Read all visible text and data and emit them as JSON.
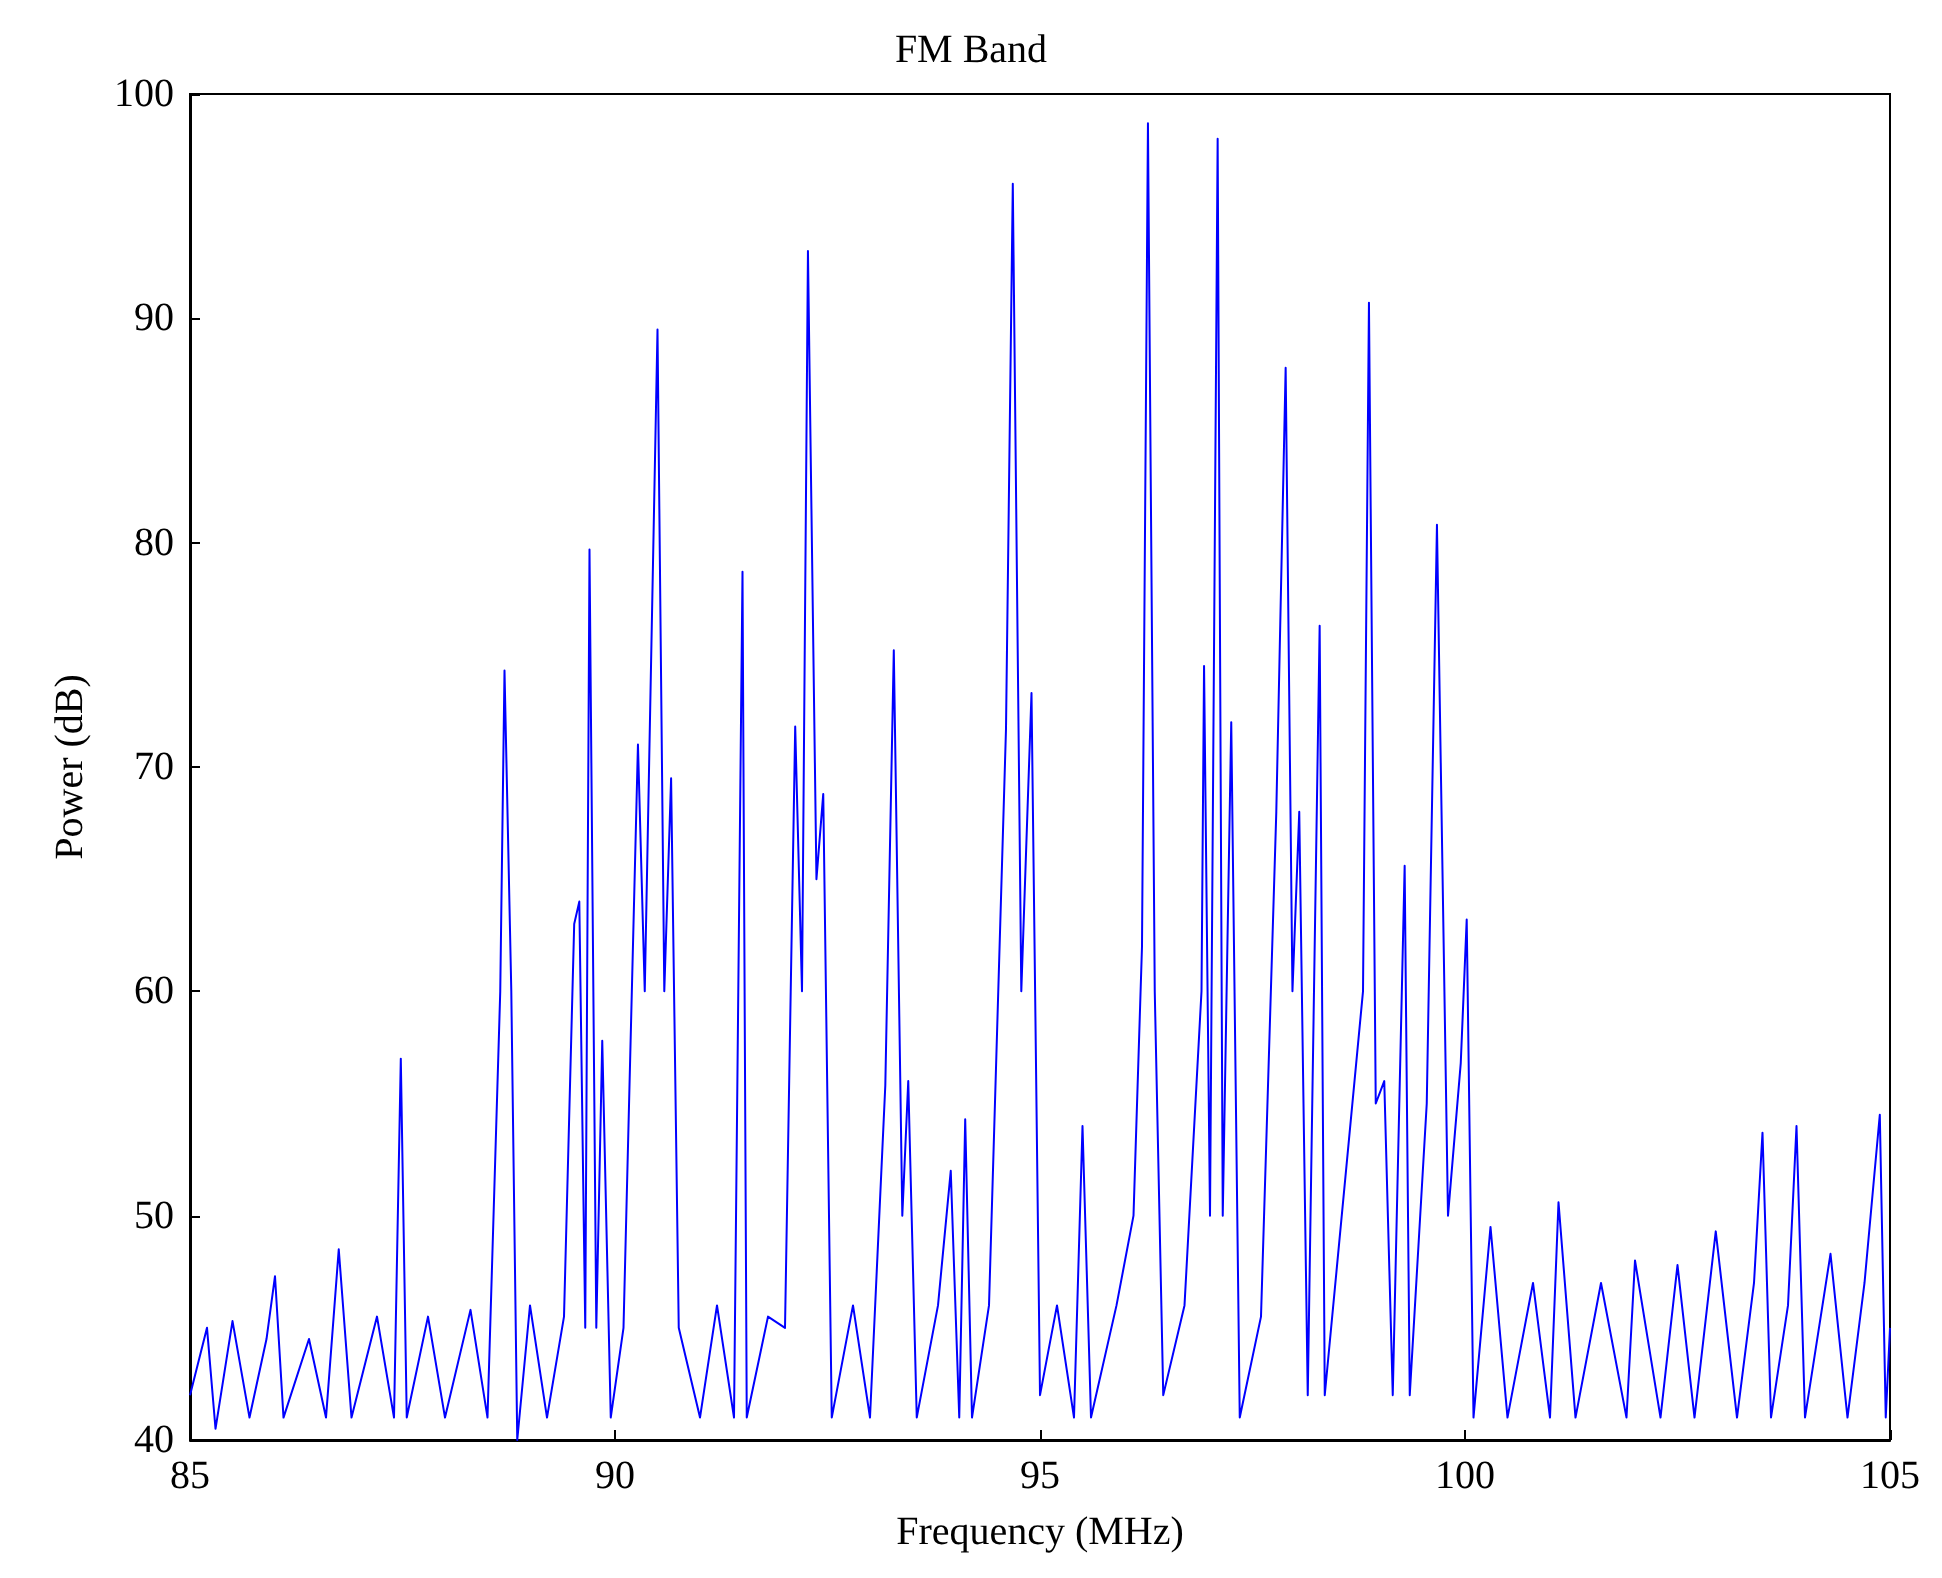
{
  "chart_data": {
    "type": "line",
    "title": "FM Band",
    "xlabel": "Frequency (MHz)",
    "ylabel": "Power (dB)",
    "xlim": [
      85,
      105
    ],
    "xticks": [
      85,
      90,
      95,
      100,
      105
    ],
    "ylim": [
      40,
      100
    ],
    "yticks": [
      40,
      50,
      60,
      70,
      80,
      90,
      100
    ],
    "grid": false,
    "marker": "none",
    "x": [
      85,
      85.2,
      85.3,
      85.5,
      85.7,
      85.9,
      86.0,
      86.1,
      86.4,
      86.6,
      86.75,
      86.9,
      87.2,
      87.4,
      87.48,
      87.55,
      87.8,
      88.0,
      88.3,
      88.5,
      88.65,
      88.7,
      88.78,
      88.85,
      89.0,
      89.2,
      89.4,
      89.52,
      89.58,
      89.65,
      89.7,
      89.78,
      89.85,
      89.95,
      90.1,
      90.27,
      90.35,
      90.5,
      90.58,
      90.66,
      90.75,
      91.0,
      91.2,
      91.4,
      91.5,
      91.55,
      91.8,
      92.0,
      92.12,
      92.2,
      92.27,
      92.37,
      92.45,
      92.55,
      92.8,
      93.0,
      93.18,
      93.28,
      93.38,
      93.45,
      93.55,
      93.8,
      93.95,
      94.05,
      94.12,
      94.2,
      94.4,
      94.6,
      94.68,
      94.78,
      94.9,
      95.0,
      95.2,
      95.4,
      95.5,
      95.6,
      95.9,
      96.1,
      96.2,
      96.27,
      96.35,
      96.45,
      96.7,
      96.9,
      96.93,
      97.0,
      97.09,
      97.15,
      97.25,
      97.35,
      97.6,
      97.78,
      97.89,
      97.97,
      98.05,
      98.15,
      98.29,
      98.35,
      98.55,
      98.7,
      98.8,
      98.87,
      98.95,
      99.05,
      99.15,
      99.29,
      99.35,
      99.55,
      99.67,
      99.8,
      99.95,
      100.02,
      100.1,
      100.3,
      100.5,
      100.8,
      101.0,
      101.1,
      101.3,
      101.6,
      101.9,
      102.0,
      102.3,
      102.5,
      102.7,
      102.95,
      103.2,
      103.4,
      103.5,
      103.6,
      103.8,
      103.9,
      104.0,
      104.3,
      104.5,
      104.7,
      104.88,
      104.95,
      105
    ],
    "series": [
      {
        "color": "#0000ff",
        "values": [
          42,
          45,
          40.5,
          45.3,
          41,
          44.5,
          47.3,
          41,
          44.5,
          41,
          48.5,
          41,
          45.5,
          41,
          57,
          41,
          45.5,
          41,
          45.8,
          41,
          60,
          74.3,
          60,
          40,
          46,
          41,
          45.5,
          63,
          64,
          45,
          79.7,
          45,
          57.8,
          41,
          45,
          71,
          60,
          89.5,
          60,
          69.5,
          45,
          41,
          46,
          41,
          78.7,
          41,
          45.5,
          45,
          71.8,
          60,
          93,
          65,
          68.8,
          41,
          46,
          41,
          55.8,
          75.2,
          50,
          56,
          41,
          46,
          52,
          41,
          54.3,
          41,
          46,
          71.7,
          96,
          60,
          73.3,
          42,
          46,
          41,
          54,
          41,
          46,
          50,
          62,
          98.7,
          60,
          42,
          46,
          60,
          74.5,
          50,
          98,
          50,
          72,
          41,
          45.5,
          68,
          87.8,
          60,
          68,
          42,
          76.3,
          42,
          50,
          56,
          60,
          90.7,
          55,
          56,
          42,
          65.6,
          42,
          55,
          80.8,
          50,
          56.8,
          63.2,
          41,
          49.5,
          41,
          47,
          41,
          50.6,
          41,
          47,
          41,
          48,
          41,
          47.8,
          41,
          49.3,
          41,
          47,
          53.7,
          41,
          46,
          54,
          41,
          48.3,
          41,
          47,
          54.5,
          41,
          45
        ]
      }
    ]
  }
}
